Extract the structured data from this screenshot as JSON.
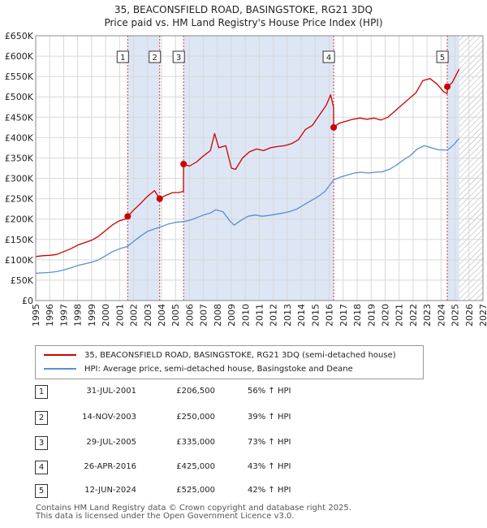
{
  "title": "35, BEACONSFIELD ROAD, BASINGSTOKE, RG21 3DQ",
  "subtitle": "Price paid vs. HM Land Registry's House Price Index (HPI)",
  "colors": {
    "property": "#cc0000",
    "hpi": "#5b8fcf",
    "highlight": "#dde6f5",
    "hatch": "#aaaaaa"
  },
  "chart_data": {
    "type": "line",
    "title": "35, BEACONSFIELD ROAD, BASINGSTOKE, RG21 3DQ",
    "subtitle": "Price paid vs. HM Land Registry's House Price Index (HPI)",
    "xlim": [
      1995,
      2027
    ],
    "ylim": [
      0,
      650000
    ],
    "y_ticks": [
      0,
      50000,
      100000,
      150000,
      200000,
      250000,
      300000,
      350000,
      400000,
      450000,
      500000,
      550000,
      600000,
      650000
    ],
    "y_tick_labels": [
      "£0",
      "£50K",
      "£100K",
      "£150K",
      "£200K",
      "£250K",
      "£300K",
      "£350K",
      "£400K",
      "£450K",
      "£500K",
      "£550K",
      "£600K",
      "£650K"
    ],
    "x_ticks": [
      1995,
      1996,
      1997,
      1998,
      1999,
      2000,
      2001,
      2002,
      2003,
      2004,
      2005,
      2006,
      2007,
      2008,
      2009,
      2010,
      2011,
      2012,
      2013,
      2014,
      2015,
      2016,
      2017,
      2018,
      2019,
      2020,
      2021,
      2022,
      2023,
      2024,
      2025,
      2026,
      2027
    ],
    "x_tick_labels": [
      "1995",
      "1996",
      "1997",
      "1998",
      "1999",
      "2000",
      "2001",
      "2002",
      "2003",
      "2004",
      "2005",
      "2006",
      "2007",
      "2008",
      "2009",
      "2010",
      "2011",
      "2012",
      "2013",
      "2014",
      "2015",
      "2016",
      "2017",
      "2018",
      "2019",
      "2020",
      "2021",
      "2022",
      "2023",
      "2024",
      "2025",
      "2026",
      "2027"
    ],
    "grid": true,
    "highlight_bands": [
      [
        2001.58,
        2003.87
      ],
      [
        2005.58,
        2016.32
      ],
      [
        2024.45,
        2025.3
      ]
    ],
    "forecast_from": 2025.3,
    "series": [
      {
        "name": "35, BEACONSFIELD ROAD, BASINGSTOKE, RG21 3DQ (semi-detached house)",
        "color": "#cc0000",
        "points": [
          [
            1995.0,
            108000
          ],
          [
            1995.5,
            110000
          ],
          [
            1996.0,
            111000
          ],
          [
            1996.5,
            113000
          ],
          [
            1997.0,
            120000
          ],
          [
            1997.5,
            127000
          ],
          [
            1998.0,
            136000
          ],
          [
            1998.5,
            142000
          ],
          [
            1999.0,
            148000
          ],
          [
            1999.5,
            158000
          ],
          [
            2000.0,
            172000
          ],
          [
            2000.5,
            186000
          ],
          [
            2001.0,
            196000
          ],
          [
            2001.5,
            201000
          ],
          [
            2001.58,
            206500
          ],
          [
            2002.0,
            222000
          ],
          [
            2002.5,
            238000
          ],
          [
            2003.0,
            256000
          ],
          [
            2003.5,
            270000
          ],
          [
            2003.87,
            250000
          ],
          [
            2004.3,
            258000
          ],
          [
            2004.8,
            265000
          ],
          [
            2005.2,
            265000
          ],
          [
            2005.57,
            268000
          ],
          [
            2005.58,
            335000
          ],
          [
            2006.0,
            330000
          ],
          [
            2006.5,
            340000
          ],
          [
            2007.0,
            355000
          ],
          [
            2007.5,
            368000
          ],
          [
            2007.8,
            410000
          ],
          [
            2008.1,
            375000
          ],
          [
            2008.6,
            380000
          ],
          [
            2009.0,
            325000
          ],
          [
            2009.3,
            322000
          ],
          [
            2009.8,
            350000
          ],
          [
            2010.3,
            365000
          ],
          [
            2010.8,
            372000
          ],
          [
            2011.3,
            368000
          ],
          [
            2011.8,
            375000
          ],
          [
            2012.3,
            378000
          ],
          [
            2012.8,
            380000
          ],
          [
            2013.3,
            385000
          ],
          [
            2013.8,
            395000
          ],
          [
            2014.3,
            420000
          ],
          [
            2014.8,
            430000
          ],
          [
            2015.3,
            455000
          ],
          [
            2015.8,
            480000
          ],
          [
            2016.1,
            505000
          ],
          [
            2016.31,
            475000
          ],
          [
            2016.32,
            425000
          ],
          [
            2016.7,
            435000
          ],
          [
            2017.2,
            440000
          ],
          [
            2017.7,
            445000
          ],
          [
            2018.2,
            448000
          ],
          [
            2018.7,
            445000
          ],
          [
            2019.2,
            448000
          ],
          [
            2019.7,
            443000
          ],
          [
            2020.2,
            450000
          ],
          [
            2020.7,
            465000
          ],
          [
            2021.2,
            480000
          ],
          [
            2021.7,
            495000
          ],
          [
            2022.2,
            510000
          ],
          [
            2022.7,
            540000
          ],
          [
            2023.2,
            545000
          ],
          [
            2023.7,
            532000
          ],
          [
            2024.2,
            512000
          ],
          [
            2024.44,
            508000
          ],
          [
            2024.45,
            525000
          ],
          [
            2024.8,
            535000
          ],
          [
            2025.1,
            555000
          ],
          [
            2025.3,
            568000
          ]
        ]
      },
      {
        "name": "HPI: Average price, semi-detached house, Basingstoke and Deane",
        "color": "#5b8fcf",
        "points": [
          [
            1995.0,
            67000
          ],
          [
            1995.5,
            68000
          ],
          [
            1996.0,
            69000
          ],
          [
            1996.5,
            71000
          ],
          [
            1997.0,
            75000
          ],
          [
            1997.5,
            80000
          ],
          [
            1998.0,
            86000
          ],
          [
            1998.5,
            90000
          ],
          [
            1999.0,
            94000
          ],
          [
            1999.5,
            100000
          ],
          [
            2000.0,
            110000
          ],
          [
            2000.5,
            120000
          ],
          [
            2001.0,
            127000
          ],
          [
            2001.58,
            133000
          ],
          [
            2002.0,
            145000
          ],
          [
            2002.5,
            158000
          ],
          [
            2003.0,
            170000
          ],
          [
            2003.5,
            176000
          ],
          [
            2003.87,
            180000
          ],
          [
            2004.5,
            188000
          ],
          [
            2005.0,
            192000
          ],
          [
            2005.58,
            194000
          ],
          [
            2006.0,
            197000
          ],
          [
            2006.5,
            203000
          ],
          [
            2007.0,
            210000
          ],
          [
            2007.5,
            215000
          ],
          [
            2007.9,
            223000
          ],
          [
            2008.4,
            218000
          ],
          [
            2008.9,
            195000
          ],
          [
            2009.2,
            185000
          ],
          [
            2009.7,
            197000
          ],
          [
            2010.2,
            207000
          ],
          [
            2010.7,
            210000
          ],
          [
            2011.2,
            207000
          ],
          [
            2011.7,
            209000
          ],
          [
            2012.2,
            212000
          ],
          [
            2012.7,
            215000
          ],
          [
            2013.2,
            219000
          ],
          [
            2013.7,
            225000
          ],
          [
            2014.2,
            235000
          ],
          [
            2014.7,
            245000
          ],
          [
            2015.2,
            255000
          ],
          [
            2015.7,
            268000
          ],
          [
            2016.32,
            296000
          ],
          [
            2016.8,
            303000
          ],
          [
            2017.3,
            308000
          ],
          [
            2017.8,
            313000
          ],
          [
            2018.3,
            315000
          ],
          [
            2018.8,
            313000
          ],
          [
            2019.3,
            315000
          ],
          [
            2019.8,
            316000
          ],
          [
            2020.3,
            322000
          ],
          [
            2020.8,
            332000
          ],
          [
            2021.3,
            345000
          ],
          [
            2021.8,
            356000
          ],
          [
            2022.3,
            372000
          ],
          [
            2022.8,
            380000
          ],
          [
            2023.3,
            375000
          ],
          [
            2023.8,
            370000
          ],
          [
            2024.45,
            369000
          ],
          [
            2024.9,
            382000
          ],
          [
            2025.3,
            398000
          ]
        ]
      }
    ],
    "annotations": [
      {
        "label": "1",
        "x": 2001.58,
        "y": 206500
      },
      {
        "label": "2",
        "x": 2003.87,
        "y": 250000
      },
      {
        "label": "3",
        "x": 2005.58,
        "y": 335000
      },
      {
        "label": "4",
        "x": 2016.32,
        "y": 425000
      },
      {
        "label": "5",
        "x": 2024.45,
        "y": 525000
      }
    ]
  },
  "legend": {
    "property": "35, BEACONSFIELD ROAD, BASINGSTOKE, RG21 3DQ (semi-detached house)",
    "hpi": "HPI: Average price, semi-detached house, Basingstoke and Deane"
  },
  "transactions": [
    {
      "num": "1",
      "date": "31-JUL-2001",
      "price": "£206,500",
      "hpi": "56% ↑ HPI"
    },
    {
      "num": "2",
      "date": "14-NOV-2003",
      "price": "£250,000",
      "hpi": "39% ↑ HPI"
    },
    {
      "num": "3",
      "date": "29-JUL-2005",
      "price": "£335,000",
      "hpi": "73% ↑ HPI"
    },
    {
      "num": "4",
      "date": "26-APR-2016",
      "price": "£425,000",
      "hpi": "43% ↑ HPI"
    },
    {
      "num": "5",
      "date": "12-JUN-2024",
      "price": "£525,000",
      "hpi": "42% ↑ HPI"
    }
  ],
  "footer": {
    "line1": "Contains HM Land Registry data © Crown copyright and database right 2025.",
    "line2": "This data is licensed under the Open Government Licence v3.0."
  }
}
